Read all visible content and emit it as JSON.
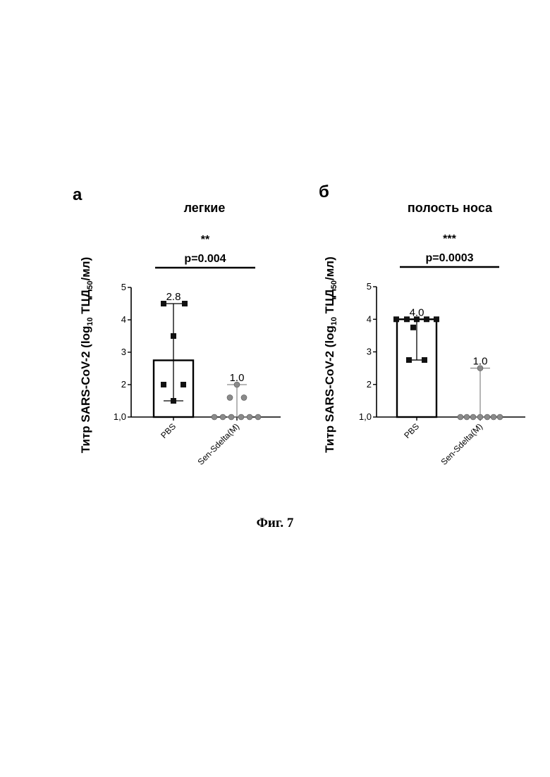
{
  "figure": {
    "caption": "Фиг. 7"
  },
  "colors": {
    "pbs_marker": "#111111",
    "sen_marker": "#8a8a8a",
    "axis": "#000000",
    "sen_errorbar": "#6e6e6e"
  },
  "chart_data": [
    {
      "type": "bar",
      "panel": "а",
      "title": "легкие",
      "ylabel_main": "Титр SARS-CoV-2 (log",
      "ylabel_sub": "10",
      "ylabel_mid": " ТЦД",
      "ylabel_sub2": "50",
      "ylabel_end": "/мл)",
      "significance_stars": "**",
      "p_value_label": "p=0.004",
      "ylim": [
        1.0,
        5.0
      ],
      "yticks": [
        1,
        2,
        3,
        4,
        5
      ],
      "ytick_labels": [
        "1,0",
        "2",
        "3",
        "4",
        "5"
      ],
      "categories": [
        "PBS",
        "Sen-Sdelta(M)"
      ],
      "values": [
        2.75,
        1.0
      ],
      "data_labels": [
        "2.8",
        "1.0"
      ],
      "error_range": [
        [
          1.5,
          4.5
        ],
        [
          1.0,
          2.0
        ]
      ],
      "points": [
        [
          4.5,
          4.5,
          3.5,
          2.0,
          2.0,
          1.5
        ],
        [
          2.0,
          1.6,
          1.6,
          1.0,
          1.0,
          1.0,
          1.0,
          1.0,
          1.0
        ]
      ],
      "point_markers": [
        "square",
        "circle"
      ],
      "grid": false
    },
    {
      "type": "bar",
      "panel": "б",
      "title": "полость носа",
      "ylabel_main": "Титр SARS-CoV-2 (log",
      "ylabel_sub": "10",
      "ylabel_mid": " ТЦД",
      "ylabel_sub2": "50",
      "ylabel_end": "/мл)",
      "significance_stars": "***",
      "p_value_label": "p=0.0003",
      "ylim": [
        1.0,
        5.0
      ],
      "yticks": [
        1,
        2,
        3,
        4,
        5
      ],
      "ytick_labels": [
        "1,0",
        "2",
        "3",
        "4",
        "5"
      ],
      "categories": [
        "PBS",
        "Sen-Sdelta(M)"
      ],
      "values": [
        4.0,
        1.0
      ],
      "data_labels": [
        "4.0",
        "1.0"
      ],
      "error_range": [
        [
          2.75,
          4.0
        ],
        [
          1.0,
          2.5
        ]
      ],
      "points": [
        [
          4.0,
          4.0,
          4.0,
          4.0,
          4.0,
          3.75,
          2.75,
          2.75
        ],
        [
          2.5,
          1.0,
          1.0,
          1.0,
          1.0,
          1.0,
          1.0,
          1.0
        ]
      ],
      "point_markers": [
        "square",
        "circle"
      ],
      "grid": false
    }
  ]
}
